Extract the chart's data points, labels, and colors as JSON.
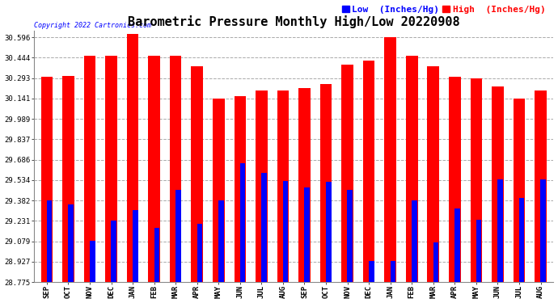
{
  "title": "Barometric Pressure Monthly High/Low 20220908",
  "copyright": "Copyright 2022 Cartronics.com",
  "legend_low": "Low  (Inches/Hg)",
  "legend_high": "High  (Inches/Hg)",
  "categories": [
    "SEP",
    "OCT",
    "NOV",
    "DEC",
    "JAN",
    "FEB",
    "MAR",
    "APR",
    "MAY",
    "JUN",
    "JUL",
    "AUG",
    "SEP",
    "OCT",
    "NOV",
    "DEC",
    "JAN",
    "FEB",
    "MAR",
    "APR",
    "MAY",
    "JUN",
    "JUL",
    "AUG"
  ],
  "high_values": [
    30.3,
    30.31,
    30.46,
    30.46,
    30.62,
    30.46,
    30.46,
    30.38,
    30.14,
    30.16,
    30.2,
    30.2,
    30.22,
    30.25,
    30.39,
    30.42,
    30.6,
    30.46,
    30.38,
    30.3,
    30.29,
    30.23,
    30.14,
    30.2
  ],
  "low_values": [
    29.38,
    29.35,
    29.08,
    29.23,
    29.31,
    29.18,
    29.46,
    29.21,
    29.38,
    29.66,
    29.59,
    29.53,
    29.48,
    29.52,
    29.46,
    28.93,
    28.93,
    29.38,
    29.07,
    29.32,
    29.24,
    29.54,
    29.4,
    29.54
  ],
  "high_color": "#ff0000",
  "low_color": "#0000ff",
  "bg_color": "#ffffff",
  "grid_color": "#aaaaaa",
  "yticks": [
    28.775,
    28.927,
    29.079,
    29.231,
    29.382,
    29.534,
    29.686,
    29.837,
    29.989,
    30.141,
    30.293,
    30.444,
    30.596
  ],
  "ylim_min": 28.775,
  "ylim_max": 30.648,
  "high_bar_width": 0.55,
  "low_bar_width": 0.25,
  "title_fontsize": 11,
  "tick_fontsize": 6.5,
  "legend_fontsize": 8
}
